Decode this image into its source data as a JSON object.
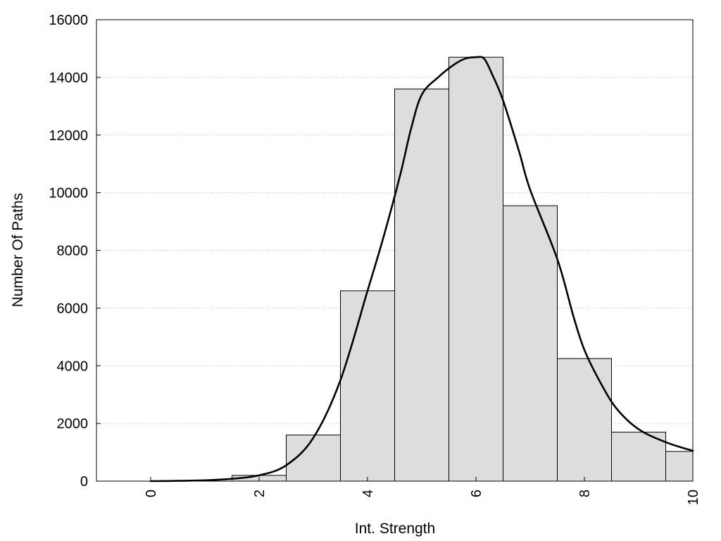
{
  "chart_data": {
    "type": "bar",
    "title": "",
    "xlabel": "Int. Strength",
    "ylabel": "Number Of Paths",
    "xlim": [
      -1,
      10
    ],
    "ylim": [
      0,
      16000
    ],
    "grid": "horizontal dotted",
    "x_ticks": [
      0,
      2,
      4,
      6,
      8,
      10
    ],
    "y_ticks": [
      0,
      2000,
      4000,
      6000,
      8000,
      10000,
      12000,
      14000,
      16000
    ],
    "bars": [
      {
        "x": 0,
        "value": 0
      },
      {
        "x": 1,
        "value": 0
      },
      {
        "x": 2,
        "value": 200
      },
      {
        "x": 3,
        "value": 1600
      },
      {
        "x": 4,
        "value": 6600
      },
      {
        "x": 5,
        "value": 13600
      },
      {
        "x": 6,
        "value": 14700
      },
      {
        "x": 7,
        "value": 9550
      },
      {
        "x": 8,
        "value": 4250
      },
      {
        "x": 9,
        "value": 1700
      },
      {
        "x": 10,
        "value": 1030
      }
    ],
    "bar_width": 1,
    "curve": {
      "x": [
        0,
        0.5,
        1,
        1.5,
        2,
        2.5,
        3,
        3.5,
        4,
        4.3,
        4.6,
        4.8,
        5,
        5.3,
        5.6,
        5.8,
        6,
        6.15,
        6.3,
        6.5,
        6.8,
        7,
        7.5,
        7.8,
        8,
        8.3,
        8.6,
        9,
        9.5,
        10
      ],
      "y": [
        0,
        10,
        30,
        80,
        200,
        550,
        1500,
        3500,
        6600,
        8500,
        10600,
        12200,
        13400,
        14000,
        14450,
        14650,
        14700,
        14650,
        14100,
        13200,
        11400,
        10100,
        7700,
        5700,
        4550,
        3400,
        2500,
        1800,
        1350,
        1050
      ]
    }
  }
}
